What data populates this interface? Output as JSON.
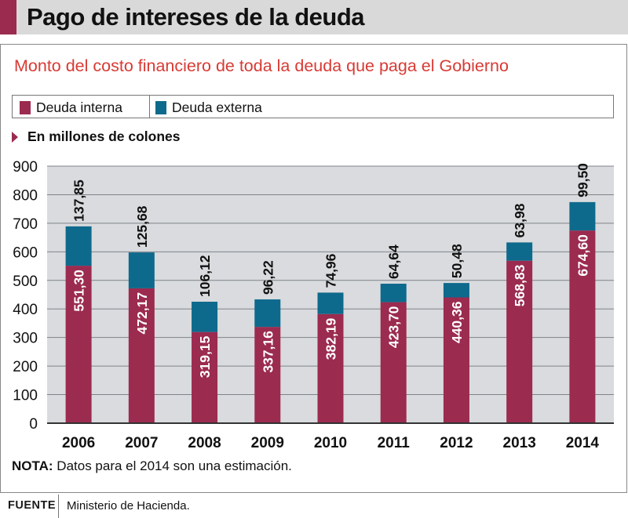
{
  "header": {
    "title": "Pago de intereses de la deuda"
  },
  "subtitle": "Monto del costo financiero de toda la deuda que paga el Gobierno",
  "legend": [
    {
      "label": "Deuda interna",
      "color": "#9b2b4f"
    },
    {
      "label": "Deuda externa",
      "color": "#0e6a8c"
    }
  ],
  "unit_label": "En millones de colones",
  "note": {
    "key": "NOTA:",
    "text": "Datos para el 2014 son una estimación."
  },
  "source": {
    "key": "FUENTE",
    "text": "Ministerio de Hacienda."
  },
  "chart_data": {
    "type": "bar",
    "stacked": true,
    "categories": [
      "2006",
      "2007",
      "2008",
      "2009",
      "2010",
      "2011",
      "2012",
      "2013",
      "2014"
    ],
    "series": [
      {
        "name": "Deuda interna",
        "color": "#9b2b4f",
        "values": [
          551.3,
          472.17,
          319.15,
          337.16,
          382.19,
          423.7,
          440.36,
          568.83,
          674.6
        ],
        "labels": [
          "551,30",
          "472,17",
          "319,15",
          "337,16",
          "382,19",
          "423,70",
          "440,36",
          "568,83",
          "674,60"
        ]
      },
      {
        "name": "Deuda externa",
        "color": "#0e6a8c",
        "values": [
          137.85,
          125.68,
          106.12,
          96.22,
          74.96,
          64.64,
          50.48,
          63.98,
          99.5
        ],
        "labels": [
          "137,85",
          "125,68",
          "106,12",
          "96,22",
          "74,96",
          "64,64",
          "50,48",
          "63,98",
          "99,50"
        ]
      }
    ],
    "ylim": [
      0,
      900
    ],
    "yticks": [
      "0",
      "100",
      "200",
      "300",
      "400",
      "500",
      "600",
      "700",
      "800",
      "900"
    ],
    "grid": true,
    "plot_background": "#d9dbde"
  }
}
